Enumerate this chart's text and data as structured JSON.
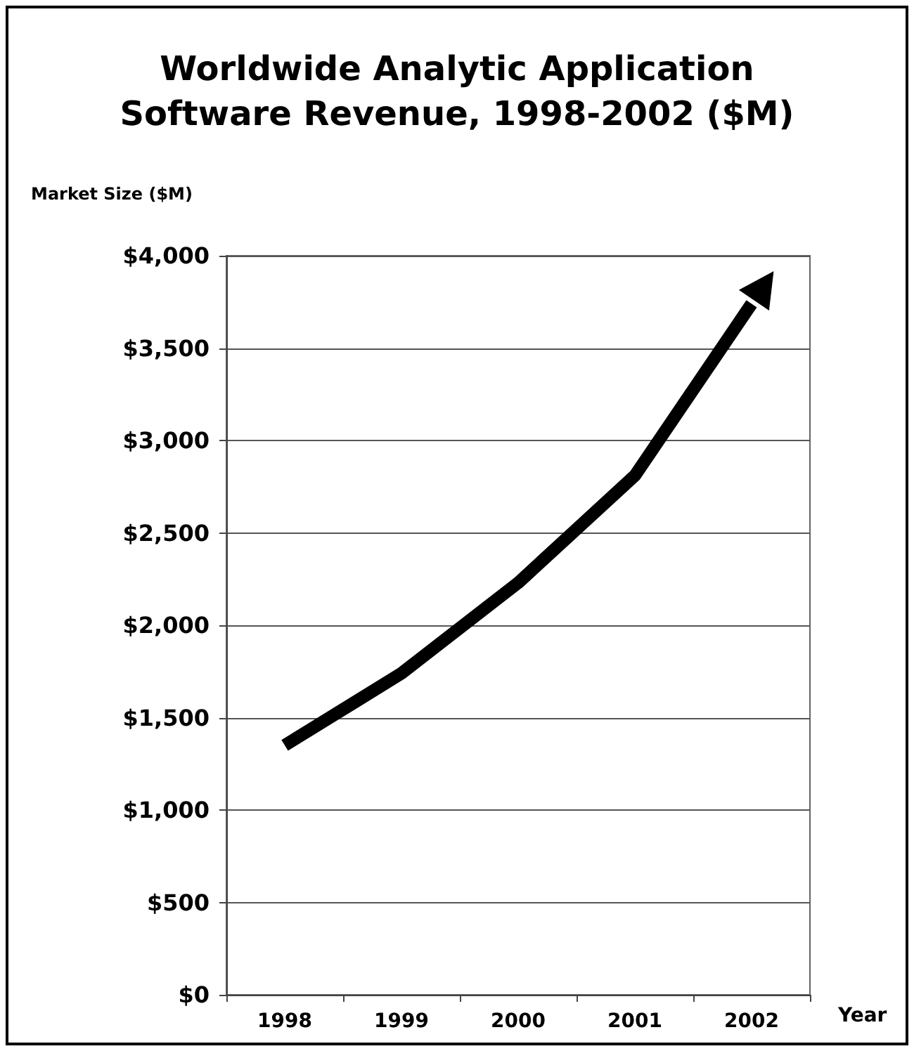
{
  "chart_data": {
    "type": "line",
    "title": "Worldwide Analytic Application\nSoftware Revenue, 1998-2002 ($M)",
    "ylabel": "Market Size ($M)",
    "xlabel": "Year",
    "categories": [
      "1998",
      "1999",
      "2000",
      "2001",
      "2002"
    ],
    "series": [
      {
        "color": "#000000",
        "values": [
          1350,
          1740,
          2230,
          2810,
          3740
        ]
      }
    ],
    "ylim": [
      0,
      4000
    ],
    "yticks": [
      {
        "value": 0,
        "label": "$0"
      },
      {
        "value": 500,
        "label": "$500"
      },
      {
        "value": 1000,
        "label": "$1,000"
      },
      {
        "value": 1500,
        "label": "$1,500"
      },
      {
        "value": 2000,
        "label": "$2,000"
      },
      {
        "value": 2500,
        "label": "$2,500"
      },
      {
        "value": 3000,
        "label": "$3,000"
      },
      {
        "value": 3500,
        "label": "$3,500"
      },
      {
        "value": 4000,
        "label": "$4,000"
      }
    ],
    "grid": "y",
    "marker": "none",
    "line_style": "solid"
  }
}
